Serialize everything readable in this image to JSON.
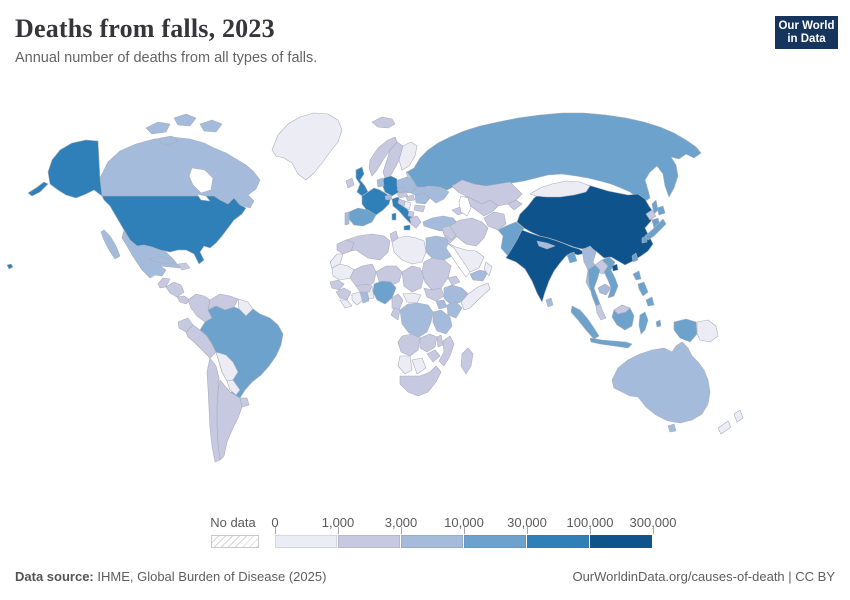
{
  "header": {
    "title": "Deaths from falls, 2023",
    "subtitle": "Annual number of deaths from all types of falls."
  },
  "logo": {
    "line1": "Our World",
    "line2": "in Data",
    "bg": "#16355c",
    "accent": "#d7382f"
  },
  "legend": {
    "no_data_label": "No data",
    "tick_labels": [
      "0",
      "1,000",
      "3,000",
      "10,000",
      "30,000",
      "100,000",
      "300,000"
    ],
    "colors": [
      "#ececf4",
      "#c7c9e1",
      "#a5bbdc",
      "#6ca2cb",
      "#2f80b9",
      "#0e538c"
    ]
  },
  "footer": {
    "source_label": "Data source:",
    "source_text": " IHME, Global Burden of Disease (2025)",
    "right_text": "OurWorldinData.org/causes-of-death | CC BY"
  },
  "map": {
    "ocean": "#ffffff",
    "border": "#a9aebc"
  },
  "chart_data": {
    "type": "heatmap",
    "subtype": "choropleth-world-map",
    "title": "Deaths from falls, 2023",
    "subtitle": "Annual number of deaths from all types of falls.",
    "legend_position": "bottom",
    "bins": [
      "0-1,000",
      "1,000-3,000",
      "3,000-10,000",
      "10,000-30,000",
      "30,000-100,000",
      "100,000-300,000"
    ],
    "bin_colors": [
      "#ececf4",
      "#c7c9e1",
      "#a5bbdc",
      "#6ca2cb",
      "#2f80b9",
      "#0e538c"
    ],
    "country_bands": {
      "greenland": 1,
      "canada": 3,
      "united-states": 5,
      "mexico": 3,
      "guatemala": 2,
      "honduras-nicaragua": 2,
      "costa-rica-panama": 2,
      "cuba": 3,
      "hispaniola": 2,
      "colombia": 2,
      "venezuela": 2,
      "guyanas": 1,
      "ecuador": 2,
      "peru": 2,
      "brazil": 4,
      "bolivia": 1,
      "paraguay": 1,
      "uruguay": 2,
      "chile": 2,
      "argentina": 2,
      "iceland": 2,
      "ireland": 2,
      "united-kingdom": 5,
      "norway": 2,
      "sweden": 2,
      "finland": 1,
      "denmark": 2,
      "baltics": 2,
      "belarus": 2,
      "poland": 3,
      "germany": 5,
      "benelux": 3,
      "france": 5,
      "spain": 4,
      "portugal": 3,
      "italy": 5,
      "switzerland": 3,
      "austria": 2,
      "czechia": 3,
      "hungary": 2,
      "romania": 3,
      "serbia": 1,
      "croatia-bosnia": 2,
      "bulgaria": 2,
      "albania-macedonia": 2,
      "greece": 2,
      "ukraine": 3,
      "russia": 4,
      "kazakhstan": 2,
      "uzbekistan-turkmenistan": 2,
      "kyrgyzstan-tajikistan": 2,
      "caucasus": 2,
      "turkey": 3,
      "levant": 2,
      "iraq": 2,
      "saudi-arabia": 1,
      "yemen": 3,
      "oman": 1,
      "iran": 2,
      "afghanistan": 2,
      "pakistan": 4,
      "india": 6,
      "nepal": 3,
      "bangladesh": 4,
      "sri-lanka": 3,
      "myanmar": 3,
      "thailand": 4,
      "malaysia": 2,
      "laos": 2,
      "cambodia": 3,
      "vietnam": 4,
      "china": 6,
      "mongolia": 1,
      "north-korea": 2,
      "south-korea": 4,
      "japan": 4,
      "taiwan": 4,
      "hainan": 6,
      "philippines": 4,
      "sumatra": 4,
      "java": 4,
      "kalimantan": 4,
      "malaysia-borneo": 2,
      "sulawesi": 4,
      "moluccas": 4,
      "papua-indonesia": 4,
      "papua-new-guinea": 1,
      "australia": 3,
      "new-zealand": 1,
      "morocco": 2,
      "western-sahara": 1,
      "algeria": 2,
      "tunisia": 2,
      "libya": 1,
      "egypt": 3,
      "mauritania": 1,
      "mali": 2,
      "niger": 2,
      "chad": 2,
      "sudan": 2,
      "eritrea": 2,
      "ethiopia": 3,
      "somalia": 1,
      "senegal": 2,
      "guinea": 2,
      "sierra-leone-liberia": 1,
      "ivory-coast": 1,
      "ghana": 3,
      "togo-benin": 1,
      "burkina-faso": 2,
      "nigeria": 4,
      "cameroon": 2,
      "central-african-republic": 1,
      "south-sudan": 2,
      "dr-congo": 3,
      "congo-gabon": 2,
      "uganda": 3,
      "kenya": 3,
      "tanzania": 3,
      "angola": 2,
      "zambia": 2,
      "malawi": 2,
      "mozambique": 2,
      "zimbabwe": 2,
      "namibia": 1,
      "botswana": 1,
      "south-africa": 2,
      "madagascar": 2,
      "arctic-islands": 3,
      "sakhalin": 4
    }
  }
}
